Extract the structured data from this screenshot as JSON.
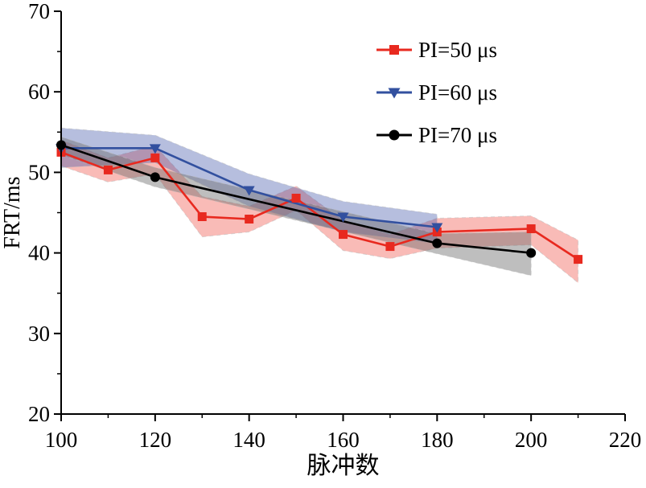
{
  "chart_data": {
    "type": "line",
    "title": "",
    "xlabel": "脉冲数",
    "ylabel": "FRT/ms",
    "xlim": [
      100,
      220
    ],
    "ylim": [
      20,
      70
    ],
    "x_major_ticks": [
      100,
      120,
      140,
      160,
      180,
      200,
      220
    ],
    "x_minor_step": 10,
    "y_major_ticks": [
      20,
      30,
      40,
      50,
      60,
      70
    ],
    "y_minor_step": 5,
    "grid": false,
    "legend_position": "top-right-inside",
    "series": [
      {
        "name": "PI=50 μs",
        "color": "#e8291f",
        "band_color": "#ed2c20",
        "band_opacity": 0.32,
        "marker": "square",
        "x": [
          100,
          110,
          120,
          130,
          140,
          150,
          160,
          170,
          180,
          200,
          210
        ],
        "y": [
          52.5,
          50.3,
          51.8,
          44.5,
          44.2,
          46.8,
          42.3,
          40.8,
          42.6,
          43.0,
          39.2
        ],
        "band_upper": [
          54.0,
          51.8,
          53.3,
          47.0,
          45.8,
          48.3,
          44.0,
          42.3,
          44.3,
          44.6,
          41.6
        ],
        "band_lower": [
          50.8,
          48.8,
          49.8,
          42.0,
          42.6,
          45.3,
          40.3,
          39.3,
          40.6,
          41.0,
          36.3
        ]
      },
      {
        "name": "PI=60 μs",
        "color": "#32509f",
        "band_color": "#3f55a7",
        "band_opacity": 0.38,
        "marker": "triangle-down",
        "x": [
          100,
          120,
          140,
          160,
          180
        ],
        "y": [
          53.0,
          53.0,
          47.8,
          44.5,
          43.2
        ],
        "band_upper": [
          55.5,
          54.6,
          49.8,
          46.4,
          44.8
        ],
        "band_lower": [
          50.6,
          51.2,
          45.8,
          42.6,
          41.2
        ]
      },
      {
        "name": "PI=70 μs",
        "color": "#000000",
        "band_color": "#6e6e6e",
        "band_opacity": 0.45,
        "marker": "circle",
        "x": [
          100,
          120,
          180,
          200
        ],
        "y": [
          53.4,
          49.4,
          41.2,
          40.0
        ],
        "band_upper": [
          54.4,
          50.6,
          42.4,
          42.6
        ],
        "band_lower": [
          52.2,
          48.2,
          39.9,
          37.2
        ]
      }
    ]
  }
}
